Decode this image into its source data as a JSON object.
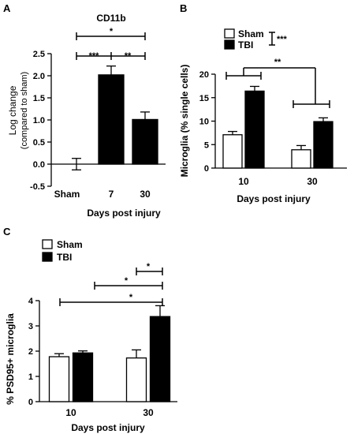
{
  "chart_data": [
    {
      "panel_label": "A",
      "type": "bar",
      "title": "CD11b",
      "xlabel": "Days post injury",
      "ylabel": "Log change",
      "ylabel_sub": "(compared to sham)",
      "categories": [
        "Sham",
        "7",
        "30"
      ],
      "values": [
        0,
        2.02,
        1.01
      ],
      "errors": [
        0.13,
        0.2,
        0.17
      ],
      "ylim": [
        -0.5,
        2.5
      ],
      "yticks": [
        "-0.5",
        "0.0",
        "0.5",
        "1.0",
        "1.5",
        "2.0",
        "2.5"
      ],
      "significance": [
        "*",
        "***",
        "**"
      ]
    },
    {
      "panel_label": "B",
      "type": "bar",
      "xlabel": "Days post injury",
      "ylabel": "Microglia (% single cells)",
      "categories": [
        "10",
        "30"
      ],
      "series": [
        {
          "name": "Sham",
          "values": [
            7.1,
            3.9
          ],
          "errors": [
            0.7,
            0.9
          ],
          "color": "#ffffff"
        },
        {
          "name": "TBI",
          "values": [
            16.4,
            9.9
          ],
          "errors": [
            1.0,
            0.8
          ],
          "color": "#000000"
        }
      ],
      "ylim": [
        0,
        20
      ],
      "yticks": [
        "0",
        "5",
        "10",
        "15",
        "20"
      ],
      "significance": [
        "***",
        "**"
      ],
      "legend_position": "top-left"
    },
    {
      "panel_label": "C",
      "type": "bar",
      "xlabel": "Days post injury",
      "ylabel": "% PSD95+ microglia",
      "categories": [
        "10",
        "30"
      ],
      "series": [
        {
          "name": "Sham",
          "values": [
            1.78,
            1.73
          ],
          "errors": [
            0.12,
            0.32
          ],
          "color": "#ffffff"
        },
        {
          "name": "TBI",
          "values": [
            1.93,
            3.37
          ],
          "errors": [
            0.08,
            0.43
          ],
          "color": "#000000"
        }
      ],
      "ylim": [
        0,
        4
      ],
      "yticks": [
        "0",
        "1",
        "2",
        "3",
        "4"
      ],
      "significance": [
        "*",
        "*",
        "*"
      ],
      "legend_position": "top-left"
    }
  ]
}
